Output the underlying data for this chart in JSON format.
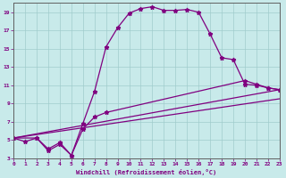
{
  "xlabel": "Windchill (Refroidissement éolien,°C)",
  "bg_color": "#c8eaea",
  "grid_color": "#a0cccc",
  "line_color": "#800080",
  "axis_color": "#606060",
  "xmin": 0,
  "xmax": 23,
  "ymin": 3,
  "ymax": 20,
  "yticks": [
    3,
    5,
    7,
    9,
    11,
    13,
    15,
    17,
    19
  ],
  "xticks": [
    0,
    1,
    2,
    3,
    4,
    5,
    6,
    7,
    8,
    9,
    10,
    11,
    12,
    13,
    14,
    15,
    16,
    17,
    18,
    19,
    20,
    21,
    22,
    23
  ],
  "line1_x": [
    0,
    1,
    2,
    3,
    4,
    5,
    6,
    7,
    8,
    9,
    10,
    11,
    12,
    13,
    14,
    15,
    16,
    17,
    18,
    19,
    20,
    21,
    22,
    23
  ],
  "line1_y": [
    5.2,
    4.8,
    5.2,
    3.8,
    4.5,
    3.3,
    6.8,
    10.3,
    15.2,
    17.3,
    18.9,
    19.4,
    19.6,
    19.2,
    19.2,
    19.3,
    19.0,
    16.6,
    14.0,
    13.8,
    11.1,
    11.0,
    10.7,
    10.5
  ],
  "line2_x": [
    0,
    2,
    3,
    4,
    5,
    6,
    7,
    8,
    20,
    21,
    22,
    23
  ],
  "line2_y": [
    5.2,
    5.2,
    4.0,
    4.7,
    3.3,
    6.2,
    7.5,
    8.0,
    11.5,
    11.1,
    10.7,
    10.5
  ],
  "line3_x": [
    0,
    23
  ],
  "line3_y": [
    5.2,
    10.5
  ],
  "line4_x": [
    0,
    23
  ],
  "line4_y": [
    5.2,
    9.5
  ]
}
